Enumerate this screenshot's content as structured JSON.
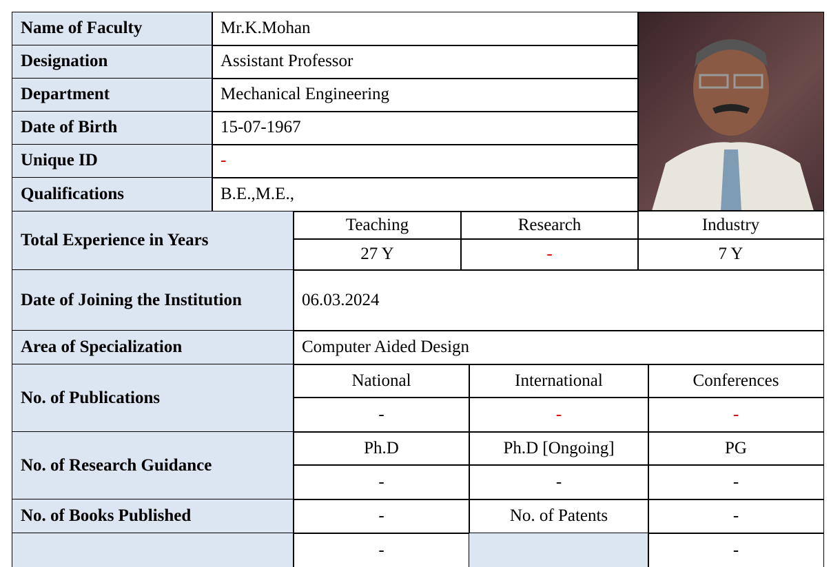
{
  "profile": {
    "rows": [
      {
        "label": "Name of Faculty",
        "value": "Mr.K.Mohan"
      },
      {
        "label": "Designation",
        "value": "Assistant  Professor"
      },
      {
        "label": "Department",
        "value": "Mechanical Engineering"
      },
      {
        "label": "Date of Birth",
        "value": "15-07-1967"
      },
      {
        "label": "Unique ID",
        "value": "-"
      },
      {
        "label": "Qualifications",
        "value": "B.E.,M.E.,"
      }
    ]
  },
  "experience": {
    "label": "Total Experience in Years",
    "headers": [
      "Teaching",
      "Research",
      "Industry"
    ],
    "values": [
      "27 Y",
      "-",
      "7 Y"
    ]
  },
  "joining": {
    "label": "Date of Joining the Institution",
    "value": "06.03.2024"
  },
  "specialization": {
    "label": "Area of Specialization",
    "value": "Computer Aided Design"
  },
  "publications": {
    "label": "No. of  Publications",
    "headers": [
      "National",
      "International",
      "Conferences"
    ],
    "values": [
      "-",
      "-",
      "-"
    ]
  },
  "research_guidance": {
    "label": "No. of Research Guidance",
    "headers": [
      "Ph.D",
      "Ph.D [Ongoing]",
      "PG"
    ],
    "values": [
      "-",
      "-",
      "-"
    ]
  },
  "books": {
    "label": "No. of Books Published",
    "value": "-",
    "patents_label": "No. of Patents",
    "patents_value": "-"
  },
  "last_row": {
    "values": [
      "-",
      "-"
    ]
  }
}
